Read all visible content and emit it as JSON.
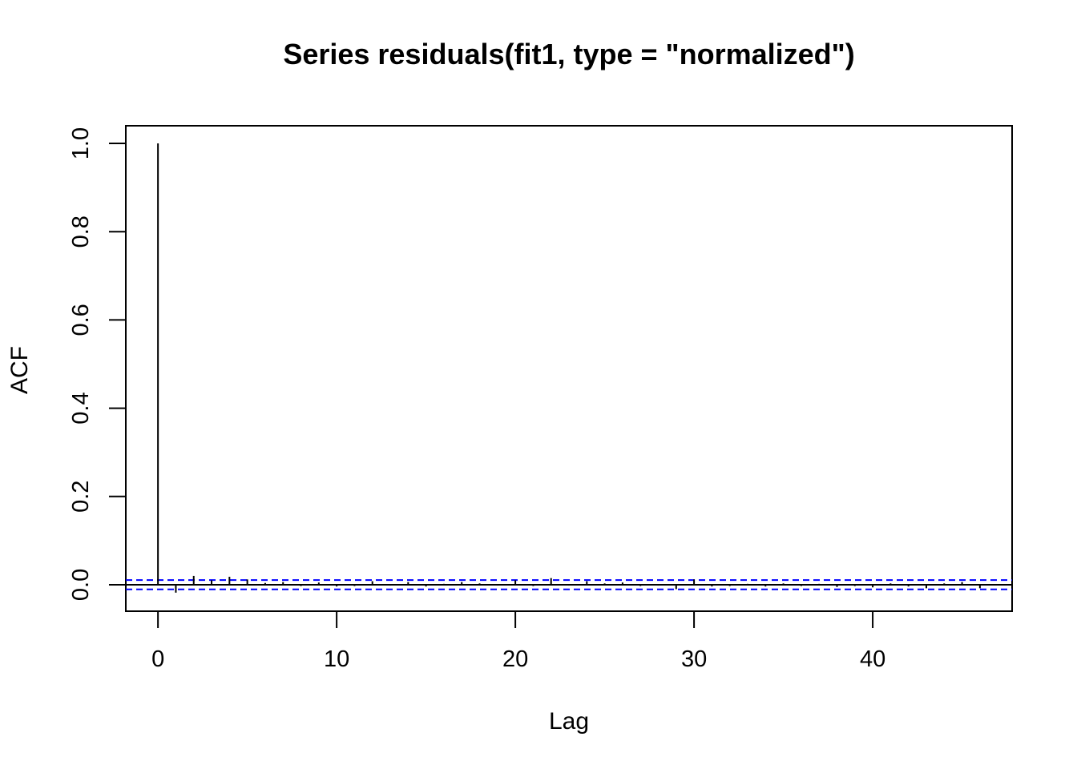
{
  "chart_data": {
    "type": "bar",
    "title": "Series  residuals(fit1, type = \"normalized\")",
    "xlabel": "Lag",
    "ylabel": "ACF",
    "xlim": [
      -1.8,
      47.8
    ],
    "ylim": [
      -0.06,
      1.04
    ],
    "x_ticks": [
      0,
      10,
      20,
      30,
      40
    ],
    "x_tick_labels": [
      "0",
      "10",
      "20",
      "30",
      "40"
    ],
    "y_ticks": [
      0.0,
      0.2,
      0.4,
      0.6,
      0.8,
      1.0
    ],
    "y_tick_labels": [
      "0.0",
      "0.2",
      "0.4",
      "0.6",
      "0.8",
      "1.0"
    ],
    "grid": false,
    "series": [
      {
        "x": [
          0,
          1,
          2,
          3,
          4,
          5,
          6,
          7,
          8,
          9,
          10,
          11,
          12,
          13,
          14,
          15,
          16,
          17,
          18,
          19,
          20,
          21,
          22,
          23,
          24,
          25,
          26,
          27,
          28,
          29,
          30,
          31,
          32,
          33,
          34,
          35,
          36,
          37,
          38,
          39,
          40,
          41,
          42,
          43,
          44,
          45,
          46
        ],
        "values": [
          1.0,
          -0.018,
          0.02,
          0.01,
          0.018,
          0.012,
          0.004,
          0.006,
          -0.003,
          0.005,
          -0.004,
          -0.003,
          0.008,
          -0.002,
          0.006,
          -0.004,
          0.002,
          0.006,
          0.003,
          -0.002,
          0.01,
          -0.003,
          0.015,
          -0.002,
          0.008,
          0.003,
          0.005,
          -0.003,
          -0.002,
          -0.01,
          0.012,
          -0.004,
          -0.003,
          0.002,
          -0.004,
          0.003,
          -0.003,
          0.002,
          -0.005,
          -0.003,
          -0.006,
          0.003,
          -0.004,
          -0.008,
          0.003,
          0.006,
          -0.008
        ]
      }
    ],
    "confidence_band": {
      "upper": 0.0105,
      "lower": -0.0105,
      "color": "#0000ff",
      "style": "dashed"
    }
  }
}
